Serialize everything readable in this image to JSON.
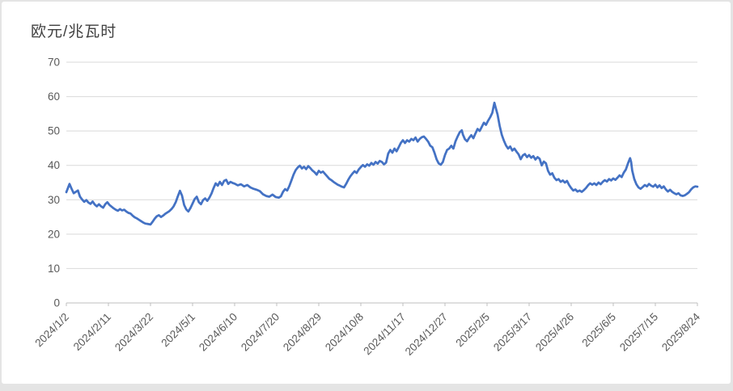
{
  "card": {
    "title": "欧元/兆瓦时"
  },
  "chart_data": {
    "type": "line",
    "title": "欧元/兆瓦时",
    "unit_label": "欧元/兆瓦时",
    "legend": "none",
    "grid": "horizontal-only",
    "line_color": "#4472C4",
    "grid_color": "#d9d9d9",
    "axis_color": "#bfbfbf",
    "axis_label_color": "#595959",
    "title_color": "#404040",
    "ylim": [
      0,
      70
    ],
    "y_ticks": [
      0,
      10,
      20,
      30,
      40,
      50,
      60,
      70
    ],
    "x_base_date": "2024/1/2",
    "x_unit": "days since 2024/1/2",
    "xlim_days": [
      0,
      600
    ],
    "x_tick_days": [
      0,
      40,
      80,
      120,
      160,
      200,
      240,
      280,
      320,
      360,
      400,
      440,
      480,
      520,
      560,
      600
    ],
    "x_tick_labels": [
      "2024/1/2",
      "2024/2/11",
      "2024/3/22",
      "2024/5/1",
      "2024/6/10",
      "2024/7/20",
      "2024/8/29",
      "2024/10/8",
      "2024/11/17",
      "2024/12/27",
      "2025/2/5",
      "2025/3/17",
      "2025/4/26",
      "2025/6/5",
      "2025/7/15",
      "2025/8/24"
    ],
    "points": [
      [
        0,
        32.2
      ],
      [
        2,
        33.8
      ],
      [
        3,
        34.6
      ],
      [
        5,
        33.2
      ],
      [
        7,
        31.9
      ],
      [
        9,
        32.3
      ],
      [
        11,
        32.7
      ],
      [
        13,
        30.9
      ],
      [
        15,
        30.1
      ],
      [
        17,
        29.4
      ],
      [
        19,
        29.9
      ],
      [
        21,
        29.2
      ],
      [
        23,
        28.8
      ],
      [
        25,
        29.5
      ],
      [
        27,
        28.6
      ],
      [
        29,
        28.1
      ],
      [
        31,
        28.7
      ],
      [
        33,
        28.1
      ],
      [
        35,
        27.7
      ],
      [
        37,
        28.7
      ],
      [
        39,
        29.3
      ],
      [
        41,
        28.5
      ],
      [
        43,
        28.0
      ],
      [
        45,
        27.5
      ],
      [
        47,
        27.1
      ],
      [
        49,
        26.8
      ],
      [
        51,
        27.3
      ],
      [
        53,
        26.9
      ],
      [
        55,
        27.1
      ],
      [
        57,
        26.6
      ],
      [
        59,
        26.2
      ],
      [
        61,
        26.0
      ],
      [
        63,
        25.4
      ],
      [
        65,
        24.9
      ],
      [
        67,
        24.6
      ],
      [
        69,
        24.2
      ],
      [
        71,
        23.8
      ],
      [
        73,
        23.4
      ],
      [
        75,
        23.1
      ],
      [
        77,
        23.0
      ],
      [
        80,
        22.8
      ],
      [
        82,
        23.6
      ],
      [
        84,
        24.5
      ],
      [
        86,
        25.2
      ],
      [
        88,
        25.5
      ],
      [
        90,
        25.0
      ],
      [
        92,
        25.4
      ],
      [
        94,
        25.9
      ],
      [
        96,
        26.3
      ],
      [
        98,
        26.7
      ],
      [
        100,
        27.3
      ],
      [
        102,
        28.1
      ],
      [
        104,
        29.3
      ],
      [
        106,
        31.0
      ],
      [
        108,
        32.6
      ],
      [
        110,
        31.2
      ],
      [
        112,
        28.5
      ],
      [
        114,
        27.2
      ],
      [
        116,
        26.6
      ],
      [
        118,
        27.6
      ],
      [
        120,
        28.9
      ],
      [
        122,
        30.2
      ],
      [
        124,
        30.9
      ],
      [
        126,
        29.3
      ],
      [
        128,
        28.7
      ],
      [
        130,
        29.9
      ],
      [
        132,
        30.4
      ],
      [
        134,
        29.7
      ],
      [
        136,
        30.6
      ],
      [
        138,
        31.8
      ],
      [
        140,
        33.4
      ],
      [
        142,
        34.8
      ],
      [
        144,
        34.1
      ],
      [
        146,
        35.2
      ],
      [
        148,
        34.3
      ],
      [
        150,
        35.5
      ],
      [
        152,
        35.8
      ],
      [
        154,
        34.6
      ],
      [
        156,
        35.2
      ],
      [
        158,
        34.9
      ],
      [
        160,
        34.7
      ],
      [
        163,
        34.2
      ],
      [
        166,
        34.5
      ],
      [
        169,
        33.9
      ],
      [
        172,
        34.3
      ],
      [
        175,
        33.6
      ],
      [
        178,
        33.2
      ],
      [
        181,
        32.9
      ],
      [
        184,
        32.5
      ],
      [
        187,
        31.6
      ],
      [
        190,
        31.1
      ],
      [
        193,
        30.9
      ],
      [
        196,
        31.5
      ],
      [
        199,
        30.8
      ],
      [
        202,
        30.6
      ],
      [
        204,
        31.0
      ],
      [
        206,
        32.3
      ],
      [
        208,
        33.1
      ],
      [
        210,
        32.7
      ],
      [
        212,
        34.0
      ],
      [
        214,
        35.6
      ],
      [
        216,
        37.3
      ],
      [
        218,
        38.6
      ],
      [
        220,
        39.4
      ],
      [
        222,
        39.9
      ],
      [
        224,
        39.1
      ],
      [
        226,
        39.6
      ],
      [
        228,
        38.9
      ],
      [
        230,
        39.8
      ],
      [
        232,
        39.2
      ],
      [
        234,
        38.5
      ],
      [
        236,
        38.0
      ],
      [
        238,
        37.3
      ],
      [
        240,
        38.4
      ],
      [
        242,
        37.9
      ],
      [
        244,
        38.2
      ],
      [
        246,
        37.5
      ],
      [
        248,
        36.8
      ],
      [
        250,
        36.1
      ],
      [
        252,
        35.7
      ],
      [
        254,
        35.2
      ],
      [
        256,
        34.8
      ],
      [
        258,
        34.4
      ],
      [
        260,
        34.1
      ],
      [
        262,
        33.8
      ],
      [
        264,
        33.6
      ],
      [
        266,
        34.6
      ],
      [
        268,
        35.8
      ],
      [
        270,
        36.8
      ],
      [
        272,
        37.6
      ],
      [
        274,
        38.3
      ],
      [
        276,
        37.8
      ],
      [
        278,
        38.8
      ],
      [
        280,
        39.5
      ],
      [
        282,
        40.1
      ],
      [
        284,
        39.6
      ],
      [
        286,
        40.3
      ],
      [
        288,
        39.9
      ],
      [
        290,
        40.7
      ],
      [
        292,
        40.2
      ],
      [
        294,
        41.0
      ],
      [
        296,
        40.5
      ],
      [
        298,
        41.3
      ],
      [
        300,
        41.0
      ],
      [
        302,
        40.3
      ],
      [
        304,
        40.8
      ],
      [
        306,
        43.4
      ],
      [
        308,
        44.5
      ],
      [
        310,
        43.7
      ],
      [
        312,
        44.9
      ],
      [
        314,
        44.1
      ],
      [
        316,
        45.3
      ],
      [
        318,
        46.5
      ],
      [
        320,
        47.3
      ],
      [
        322,
        46.5
      ],
      [
        324,
        47.3
      ],
      [
        326,
        46.9
      ],
      [
        328,
        47.7
      ],
      [
        330,
        47.3
      ],
      [
        332,
        48.1
      ],
      [
        334,
        46.9
      ],
      [
        336,
        47.7
      ],
      [
        338,
        48.2
      ],
      [
        340,
        48.4
      ],
      [
        342,
        47.7
      ],
      [
        344,
        46.9
      ],
      [
        346,
        45.7
      ],
      [
        348,
        45.3
      ],
      [
        350,
        43.7
      ],
      [
        352,
        41.8
      ],
      [
        354,
        40.6
      ],
      [
        356,
        40.2
      ],
      [
        358,
        41.0
      ],
      [
        360,
        43.0
      ],
      [
        362,
        44.5
      ],
      [
        364,
        44.9
      ],
      [
        366,
        45.7
      ],
      [
        368,
        44.9
      ],
      [
        370,
        47.0
      ],
      [
        372,
        48.4
      ],
      [
        374,
        49.6
      ],
      [
        376,
        50.2
      ],
      [
        377,
        49.0
      ],
      [
        379,
        47.6
      ],
      [
        381,
        47.0
      ],
      [
        383,
        48.0
      ],
      [
        385,
        48.8
      ],
      [
        387,
        47.9
      ],
      [
        389,
        49.3
      ],
      [
        391,
        50.6
      ],
      [
        393,
        50.0
      ],
      [
        395,
        51.2
      ],
      [
        397,
        52.4
      ],
      [
        399,
        51.8
      ],
      [
        401,
        53.0
      ],
      [
        403,
        54.0
      ],
      [
        405,
        55.3
      ],
      [
        406,
        56.8
      ],
      [
        407,
        58.2
      ],
      [
        408,
        57.0
      ],
      [
        410,
        54.8
      ],
      [
        412,
        51.5
      ],
      [
        414,
        48.9
      ],
      [
        416,
        47.2
      ],
      [
        418,
        45.8
      ],
      [
        420,
        44.9
      ],
      [
        422,
        45.5
      ],
      [
        424,
        44.3
      ],
      [
        426,
        44.9
      ],
      [
        428,
        44.0
      ],
      [
        430,
        43.2
      ],
      [
        432,
        41.8
      ],
      [
        434,
        42.9
      ],
      [
        436,
        43.3
      ],
      [
        438,
        42.4
      ],
      [
        440,
        43.0
      ],
      [
        442,
        42.2
      ],
      [
        444,
        42.7
      ],
      [
        446,
        41.7
      ],
      [
        448,
        42.4
      ],
      [
        450,
        41.9
      ],
      [
        452,
        40.0
      ],
      [
        454,
        41.1
      ],
      [
        456,
        40.6
      ],
      [
        458,
        38.4
      ],
      [
        460,
        37.3
      ],
      [
        462,
        37.7
      ],
      [
        464,
        36.4
      ],
      [
        466,
        35.7
      ],
      [
        468,
        36.0
      ],
      [
        470,
        35.2
      ],
      [
        472,
        35.6
      ],
      [
        474,
        35.0
      ],
      [
        476,
        35.5
      ],
      [
        478,
        34.3
      ],
      [
        480,
        33.4
      ],
      [
        482,
        32.7
      ],
      [
        484,
        33.0
      ],
      [
        486,
        32.4
      ],
      [
        488,
        32.7
      ],
      [
        490,
        32.3
      ],
      [
        492,
        32.8
      ],
      [
        494,
        33.4
      ],
      [
        496,
        34.2
      ],
      [
        498,
        34.8
      ],
      [
        500,
        34.4
      ],
      [
        502,
        34.8
      ],
      [
        504,
        34.3
      ],
      [
        506,
        35.0
      ],
      [
        508,
        34.5
      ],
      [
        510,
        35.2
      ],
      [
        512,
        35.7
      ],
      [
        514,
        35.3
      ],
      [
        516,
        36.0
      ],
      [
        518,
        35.6
      ],
      [
        520,
        36.2
      ],
      [
        522,
        35.8
      ],
      [
        524,
        36.4
      ],
      [
        526,
        37.1
      ],
      [
        528,
        36.6
      ],
      [
        530,
        37.9
      ],
      [
        532,
        38.8
      ],
      [
        534,
        40.6
      ],
      [
        536,
        42.1
      ],
      [
        537,
        41.0
      ],
      [
        538,
        38.5
      ],
      [
        540,
        36.0
      ],
      [
        542,
        34.5
      ],
      [
        544,
        33.6
      ],
      [
        546,
        33.2
      ],
      [
        548,
        33.7
      ],
      [
        550,
        34.3
      ],
      [
        552,
        33.9
      ],
      [
        554,
        34.6
      ],
      [
        556,
        34.1
      ],
      [
        558,
        33.8
      ],
      [
        560,
        34.4
      ],
      [
        562,
        33.6
      ],
      [
        564,
        34.2
      ],
      [
        566,
        33.4
      ],
      [
        568,
        33.9
      ],
      [
        570,
        33.0
      ],
      [
        572,
        32.4
      ],
      [
        574,
        32.9
      ],
      [
        576,
        32.3
      ],
      [
        578,
        31.9
      ],
      [
        580,
        31.6
      ],
      [
        582,
        31.9
      ],
      [
        584,
        31.3
      ],
      [
        586,
        31.1
      ],
      [
        588,
        31.3
      ],
      [
        590,
        31.7
      ],
      [
        592,
        32.2
      ],
      [
        594,
        33.0
      ],
      [
        596,
        33.6
      ],
      [
        598,
        33.9
      ],
      [
        600,
        33.8
      ]
    ]
  }
}
